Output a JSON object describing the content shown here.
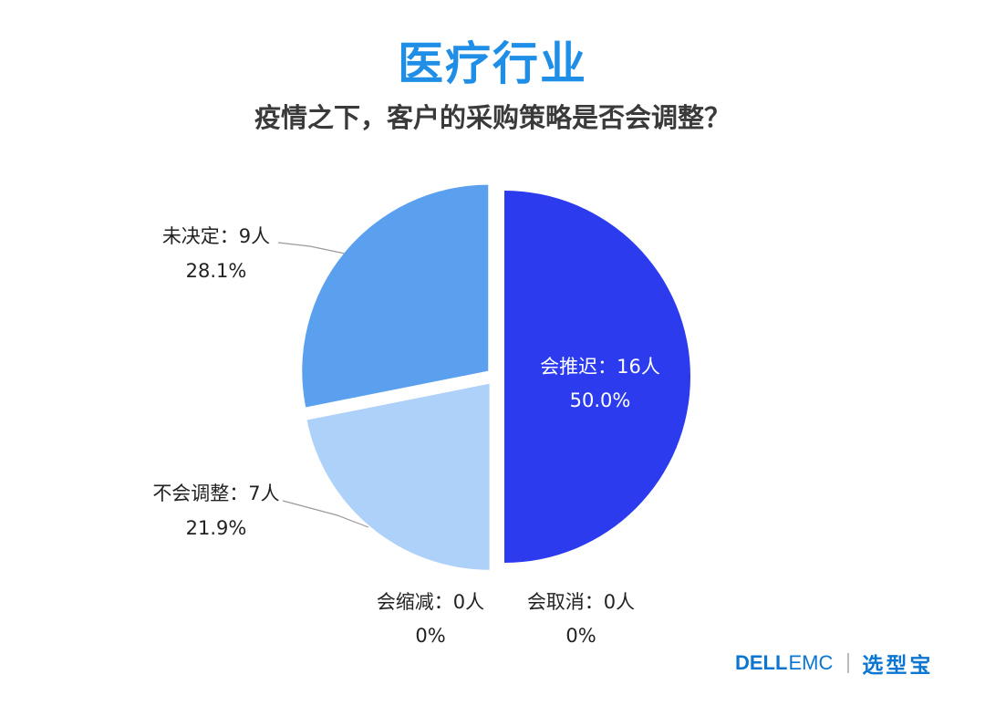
{
  "chart_data": {
    "type": "pie",
    "title": "医疗行业",
    "subtitle": "疫情之下，客户的采购策略是否会调整？",
    "slices": [
      {
        "label": "会推迟：16人",
        "value": 16,
        "percent": "50.0%",
        "color": "#2b3bed"
      },
      {
        "label": "会取消：0人",
        "value": 0,
        "percent": "0%",
        "color": "#1f8ee6"
      },
      {
        "label": "会缩减：0人",
        "value": 0,
        "percent": "0%",
        "color": "#7fb8f2"
      },
      {
        "label": "不会调整：7人",
        "value": 7,
        "percent": "21.9%",
        "color": "#aed1f9"
      },
      {
        "label": "未决定：9人",
        "value": 9,
        "percent": "28.1%",
        "color": "#5aa0ef"
      }
    ]
  },
  "logo": {
    "dell": "DELL",
    "emc": "EMC",
    "brand": "选型宝"
  }
}
